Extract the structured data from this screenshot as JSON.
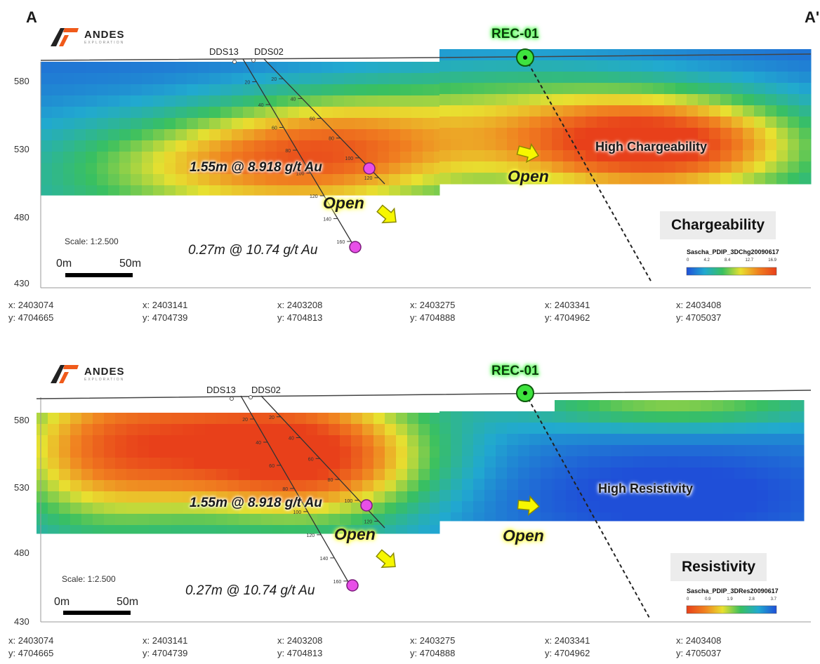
{
  "section": {
    "start": "A",
    "end": "A'"
  },
  "logo": {
    "name": "ANDES",
    "subtitle": "EXPLORATION"
  },
  "collars": [
    "DDS13",
    "DDS02"
  ],
  "survey_point": "REC-01",
  "y_ticks": [
    "580",
    "530",
    "480",
    "430"
  ],
  "coordinates": [
    {
      "x": "x: 2403074",
      "y": "y: 4704665"
    },
    {
      "x": "x: 2403141",
      "y": "y: 4704739"
    },
    {
      "x": "x: 2403208",
      "y": "y: 4704813"
    },
    {
      "x": "x: 2403275",
      "y": "y: 4704888"
    },
    {
      "x": "x: 2403341",
      "y": "y: 4704962"
    },
    {
      "x": "x: 2403408",
      "y": "y: 4705037"
    }
  ],
  "scale": {
    "ratio": "Scale: 1:2.500",
    "start": "0m",
    "end": "50m"
  },
  "intercepts": {
    "upper": "1.55m @ 8.918 g/t Au",
    "lower": "0.27m @ 10.74 g/t Au"
  },
  "open_label": "Open",
  "depth_marks_dds13": [
    "20",
    "40",
    "60",
    "80",
    "100",
    "120",
    "140",
    "160"
  ],
  "depth_marks_dds02": [
    "20",
    "40",
    "60",
    "80",
    "100",
    "120"
  ],
  "panels": [
    {
      "zone_label": "High Chargeability",
      "legend_title": "Chargeability",
      "legend_name": "Sascha_PDIP_3DChg20090617",
      "legend_values": [
        "0",
        "4.2",
        "8.4",
        "12.7",
        "16.9"
      ],
      "colorbar": [
        "#1f4fd8",
        "#21a9d0",
        "#39c060",
        "#e8e030",
        "#f08020",
        "#e8401a"
      ]
    },
    {
      "zone_label": "High Resistivity",
      "legend_title": "Resistivity",
      "legend_name": "Sascha_PDIP_3DRes20090617",
      "legend_values": [
        "0",
        "0.9",
        "1.9",
        "2.8",
        "3.7"
      ],
      "colorbar": [
        "#e8401a",
        "#f08020",
        "#e8e030",
        "#39c060",
        "#21a9d0",
        "#1f4fd8"
      ]
    }
  ]
}
